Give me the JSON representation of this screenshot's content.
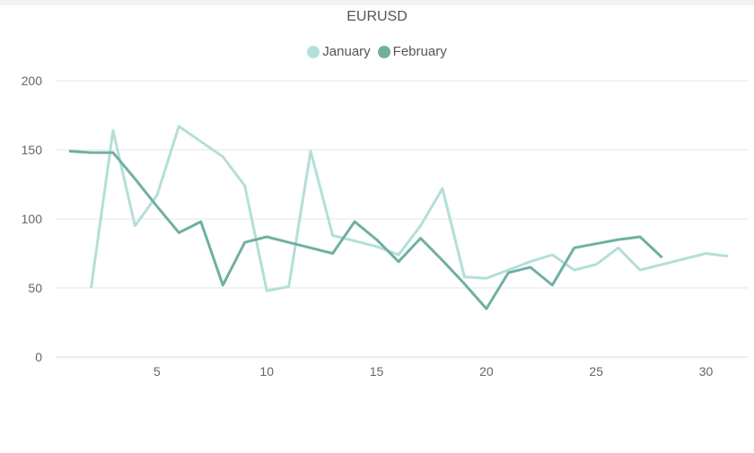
{
  "chart_data": {
    "type": "line",
    "title": "EURUSD",
    "xlabel": "",
    "ylabel": "",
    "xlim": [
      1,
      31
    ],
    "ylim": [
      0,
      200
    ],
    "yticks": [
      0,
      50,
      100,
      150,
      200
    ],
    "xticks": [
      5,
      10,
      15,
      20,
      25,
      30
    ],
    "grid": true,
    "legend_position": "top-center",
    "series": [
      {
        "name": "January",
        "color": "#b3dfd9",
        "x": [
          2,
          3,
          4,
          5,
          6,
          7,
          8,
          9,
          10,
          11,
          12,
          13,
          14,
          15,
          16,
          17,
          18,
          19,
          20,
          21,
          22,
          23,
          24,
          25,
          26,
          27,
          28,
          29,
          30,
          31
        ],
        "values": [
          50,
          164,
          95,
          117,
          167,
          156,
          145,
          124,
          48,
          51,
          149,
          88,
          84,
          80,
          74,
          95,
          122,
          58,
          57,
          63,
          69,
          74,
          63,
          67,
          79,
          63,
          67,
          71,
          75,
          73
        ]
      },
      {
        "name": "February",
        "color": "#6fb0a3",
        "x": [
          1,
          2,
          3,
          4,
          5,
          6,
          7,
          8,
          9,
          10,
          11,
          12,
          13,
          14,
          15,
          16,
          17,
          18,
          19,
          20,
          21,
          22,
          23,
          24,
          25,
          26,
          27,
          28
        ],
        "values": [
          149,
          148,
          148,
          129,
          109,
          90,
          98,
          52,
          83,
          87,
          83,
          79,
          75,
          98,
          85,
          69,
          86,
          70,
          53,
          35,
          61,
          65,
          52,
          79,
          82,
          85,
          87,
          72
        ]
      }
    ]
  }
}
